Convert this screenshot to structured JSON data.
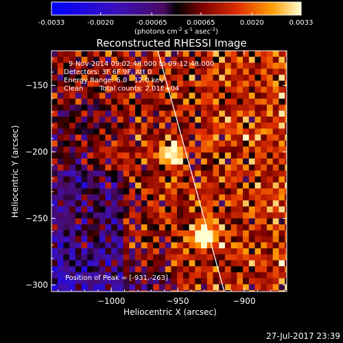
{
  "colorbar": {
    "ticks": [
      "-0.0033",
      "-0.0020",
      "-0.00065",
      "0.00065",
      "0.0020",
      "0.0033"
    ],
    "unit_main": "(photons cm",
    "unit_exp1": "-2",
    "unit_mid": " s",
    "unit_exp2": "-1",
    "unit_mid2": " asec",
    "unit_exp3": "-2",
    "unit_end": ")"
  },
  "chart_data": {
    "type": "heatmap",
    "title": "Reconstructed RHESSI Image",
    "xlabel": "Heliocentric X (arcsec)",
    "ylabel": "Heliocentric Y (arcsec)",
    "xlim": [
      -1045,
      -868
    ],
    "ylim": [
      -305,
      -124
    ],
    "x_ticks": [
      -1000,
      -950,
      -900
    ],
    "y_ticks": [
      -150,
      -200,
      -250,
      -300
    ],
    "x_tick_labels": [
      "−1000",
      "−950",
      "−900"
    ],
    "y_tick_labels": [
      "−150",
      "−200",
      "−250",
      "−300"
    ],
    "color_range": [
      -0.0033,
      0.0033
    ],
    "peaks": [
      {
        "x": -931,
        "y": -263,
        "intensity": 0.0033
      },
      {
        "x": -955,
        "y": -203,
        "intensity": 0.0028
      }
    ],
    "limb_line": [
      [
        -965,
        -124
      ],
      [
        -915,
        -305
      ]
    ],
    "annotations": {
      "time": "9-Nov-2014 09:02:48.000 to 09:12:48.000",
      "detectors": "Detectors: 3F 6F 9F, Att 0",
      "energy": "Energy Range: 6.0 - 12.0 keV",
      "clean": "Clean",
      "counts": "Total counts: 2.01E+04",
      "peak": "Position of Peak = [-931,-263]"
    }
  },
  "footer": {
    "timestamp": "27-Jul-2017 23:39"
  }
}
